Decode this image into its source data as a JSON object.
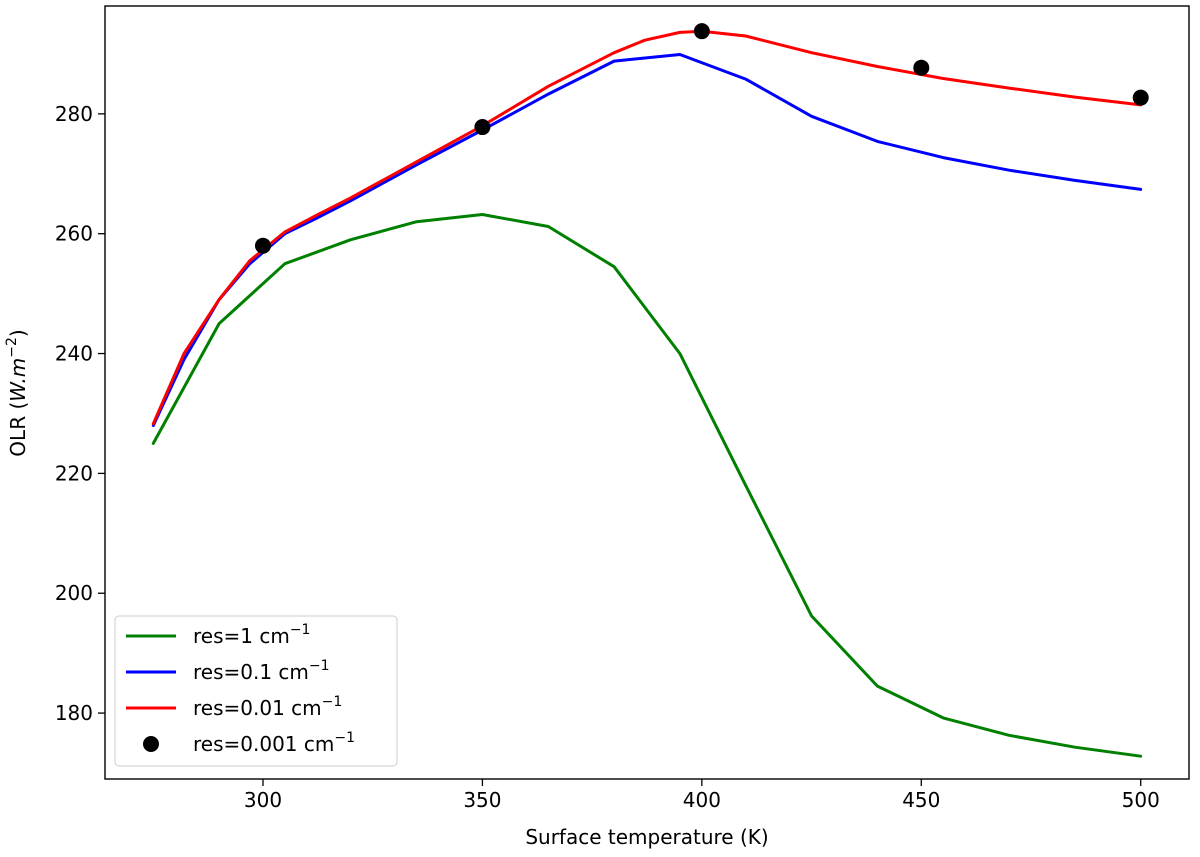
{
  "chart_data": {
    "type": "line",
    "xlabel": "Surface temperature (K)",
    "ylabel": {
      "prefix": "OLR (",
      "math": "W.m",
      "sup": "−2",
      "suffix": ")"
    },
    "xlim": [
      264,
      511
    ],
    "ylim": [
      169,
      298
    ],
    "xticks": [
      300,
      350,
      400,
      450,
      500
    ],
    "yticks": [
      180,
      200,
      220,
      240,
      260,
      280
    ],
    "legend_position": "lower-left",
    "series": [
      {
        "name": "res=1 cm",
        "name_sup": "−1",
        "color": "#008000",
        "style": "line",
        "points": [
          [
            275,
            225
          ],
          [
            290,
            245
          ],
          [
            305,
            255
          ],
          [
            320,
            259
          ],
          [
            335,
            262
          ],
          [
            350,
            263.2
          ],
          [
            365,
            261.2
          ],
          [
            380,
            254.5
          ],
          [
            395,
            240
          ],
          [
            410,
            218
          ],
          [
            425,
            196.2
          ],
          [
            440,
            184.5
          ],
          [
            455,
            179.2
          ],
          [
            470,
            176.3
          ],
          [
            485,
            174.3
          ],
          [
            500,
            172.8
          ]
        ]
      },
      {
        "name": "res=0.1 cm",
        "name_sup": "−1",
        "color": "#0000ff",
        "style": "line",
        "points": [
          [
            275,
            228
          ],
          [
            282,
            239
          ],
          [
            290,
            249
          ],
          [
            297,
            255
          ],
          [
            305,
            260
          ],
          [
            312,
            262.5
          ],
          [
            320,
            265.5
          ],
          [
            335,
            271.5
          ],
          [
            350,
            277.3
          ],
          [
            365,
            283.3
          ],
          [
            380,
            288.8
          ],
          [
            395,
            289.9
          ],
          [
            410,
            285.8
          ],
          [
            425,
            279.6
          ],
          [
            440,
            275.4
          ],
          [
            455,
            272.7
          ],
          [
            470,
            270.6
          ],
          [
            485,
            268.9
          ],
          [
            500,
            267.4
          ]
        ]
      },
      {
        "name": "res=0.01 cm",
        "name_sup": "−1",
        "color": "#ff0000",
        "style": "line",
        "points": [
          [
            275,
            228.3
          ],
          [
            282,
            240
          ],
          [
            290,
            249
          ],
          [
            297,
            255.5
          ],
          [
            305,
            260.3
          ],
          [
            312,
            263
          ],
          [
            320,
            266
          ],
          [
            335,
            272
          ],
          [
            350,
            278
          ],
          [
            365,
            284.6
          ],
          [
            380,
            290.2
          ],
          [
            387,
            292.3
          ],
          [
            395,
            293.6
          ],
          [
            400,
            293.8
          ],
          [
            410,
            293
          ],
          [
            425,
            290.2
          ],
          [
            440,
            287.9
          ],
          [
            455,
            285.9
          ],
          [
            470,
            284.3
          ],
          [
            485,
            282.8
          ],
          [
            500,
            281.5
          ]
        ]
      },
      {
        "name": "res=0.001 cm",
        "name_sup": "−1",
        "color": "#000000",
        "style": "markers",
        "points": [
          [
            300,
            258
          ],
          [
            350,
            277.8
          ],
          [
            400,
            293.8
          ],
          [
            450,
            287.7
          ],
          [
            500,
            282.7
          ]
        ]
      }
    ]
  }
}
